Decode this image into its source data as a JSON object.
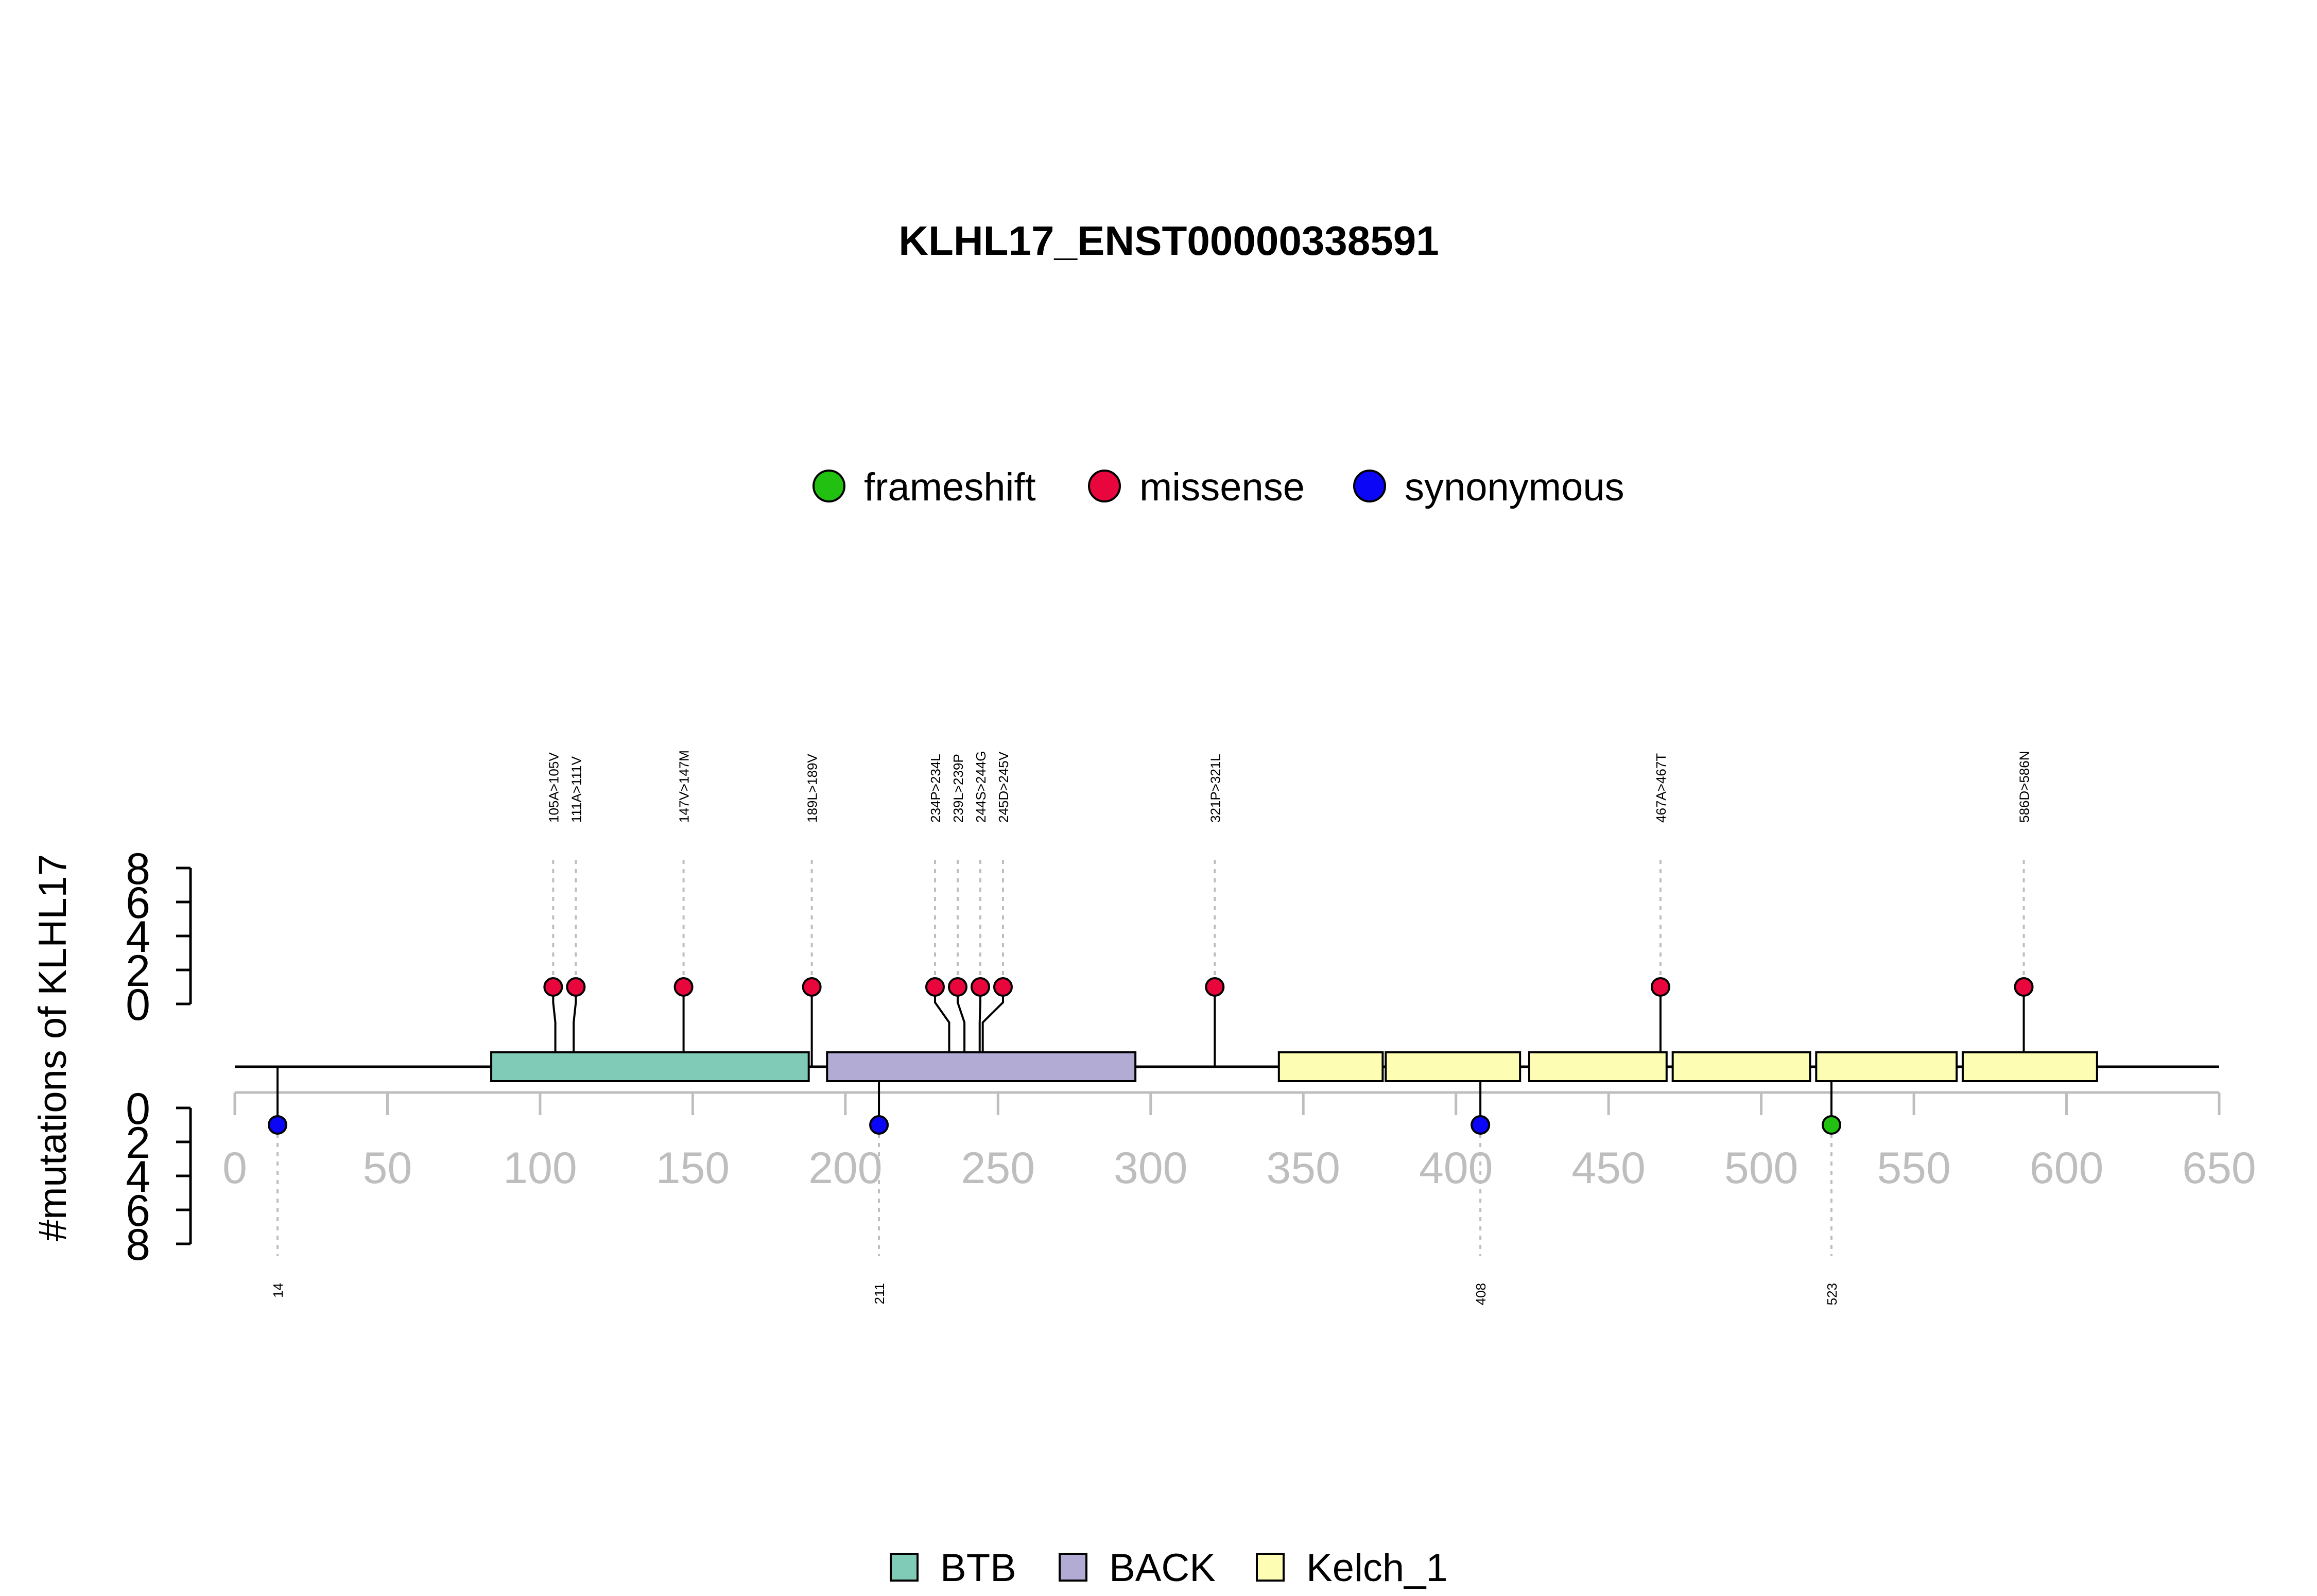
{
  "chart_data": {
    "type": "lollipop",
    "title": "KLHL17_ENST00000338591",
    "ylabel": "#mutations of KLHL17",
    "xlim": [
      0,
      650
    ],
    "x_ticks": [
      "0",
      "50",
      "100",
      "150",
      "200",
      "250",
      "300",
      "350",
      "400",
      "450",
      "500",
      "550",
      "600",
      "650"
    ],
    "y_ticks_top": [
      "0",
      "2",
      "4",
      "6",
      "8"
    ],
    "y_ticks_bottom": [
      "0",
      "2",
      "4",
      "6",
      "8"
    ],
    "ylim": [
      0,
      8
    ],
    "protein_length": 650,
    "mutation_legend": [
      {
        "name": "frameshift",
        "color": "#22c010"
      },
      {
        "name": "missense",
        "color": "#e8063c"
      },
      {
        "name": "synonymous",
        "color": "#0b06f5"
      }
    ],
    "domain_legend": [
      {
        "name": "BTB",
        "color": "#7fcbb8"
      },
      {
        "name": "BACK",
        "color": "#b2acd4"
      },
      {
        "name": "Kelch_1",
        "color": "#fdfdb4"
      }
    ],
    "domains": [
      {
        "name": "BTB",
        "start": 84,
        "end": 188
      },
      {
        "name": "BACK",
        "start": 194,
        "end": 295
      },
      {
        "name": "Kelch_1",
        "start": 342,
        "end": 376
      },
      {
        "name": "Kelch_1",
        "start": 377,
        "end": 421
      },
      {
        "name": "Kelch_1",
        "start": 424,
        "end": 469
      },
      {
        "name": "Kelch_1",
        "start": 471,
        "end": 516
      },
      {
        "name": "Kelch_1",
        "start": 518,
        "end": 564
      },
      {
        "name": "Kelch_1",
        "start": 566,
        "end": 610
      }
    ],
    "mutations_top": [
      {
        "pos": 105,
        "label": "105A>105V",
        "type": "missense",
        "count": 1
      },
      {
        "pos": 111,
        "label": "111A>111V",
        "type": "missense",
        "count": 1
      },
      {
        "pos": 147,
        "label": "147V>147M",
        "type": "missense",
        "count": 1
      },
      {
        "pos": 189,
        "label": "189L>189V",
        "type": "missense",
        "count": 1
      },
      {
        "pos": 234,
        "label": "234P>234L",
        "type": "missense",
        "count": 1
      },
      {
        "pos": 239,
        "label": "239L>239P",
        "type": "missense",
        "count": 1
      },
      {
        "pos": 244,
        "label": "244S>244G",
        "type": "missense",
        "count": 1
      },
      {
        "pos": 245,
        "label": "245D>245V",
        "type": "missense",
        "count": 1
      },
      {
        "pos": 321,
        "label": "321P>321L",
        "type": "missense",
        "count": 1
      },
      {
        "pos": 467,
        "label": "467A>467T",
        "type": "missense",
        "count": 1
      },
      {
        "pos": 586,
        "label": "586D>586N",
        "type": "missense",
        "count": 1
      }
    ],
    "mutations_bottom": [
      {
        "pos": 14,
        "label": "14",
        "type": "synonymous",
        "count": 1
      },
      {
        "pos": 211,
        "label": "211",
        "type": "synonymous",
        "count": 1
      },
      {
        "pos": 408,
        "label": "408",
        "type": "synonymous",
        "count": 1
      },
      {
        "pos": 523,
        "label": "523",
        "type": "frameshift",
        "count": 1
      }
    ]
  }
}
